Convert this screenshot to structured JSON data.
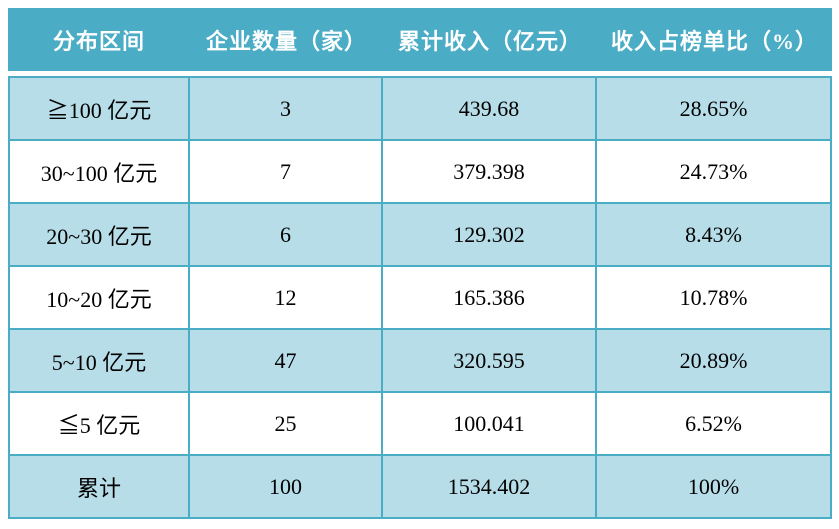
{
  "header": {
    "columns": [
      "分布区间",
      "企业数量（家）",
      "累计收入（亿元）",
      "收入占榜单比（%）"
    ]
  },
  "rows": [
    {
      "cells": [
        "≧100 亿元",
        "3",
        "439.68",
        "28.65%"
      ]
    },
    {
      "cells": [
        "30~100 亿元",
        "7",
        "379.398",
        "24.73%"
      ]
    },
    {
      "cells": [
        "20~30 亿元",
        "6",
        "129.302",
        "8.43%"
      ]
    },
    {
      "cells": [
        "10~20 亿元",
        "12",
        "165.386",
        "10.78%"
      ]
    },
    {
      "cells": [
        "5~10 亿元",
        "47",
        "320.595",
        "20.89%"
      ]
    },
    {
      "cells": [
        "≦5 亿元",
        "25",
        "100.041",
        "6.52%"
      ]
    },
    {
      "cells": [
        "累计",
        "100",
        "1534.402",
        "100%"
      ]
    }
  ],
  "colors": {
    "header_bg": "#4bacc6",
    "header_text": "#ffffff",
    "alt_row_bg": "#b7dde8",
    "row_bg": "#ffffff",
    "border": "#4bacc6",
    "body_text": "#000000"
  },
  "chart_data": {
    "type": "table",
    "title": "",
    "columns": [
      "分布区间",
      "企业数量（家）",
      "累计收入（亿元）",
      "收入占榜单比（%）"
    ],
    "categories": [
      "≧100 亿元",
      "30~100 亿元",
      "20~30 亿元",
      "10~20 亿元",
      "5~10 亿元",
      "≦5 亿元",
      "累计"
    ],
    "series": [
      {
        "name": "企业数量（家）",
        "values": [
          3,
          7,
          6,
          12,
          47,
          25,
          100
        ]
      },
      {
        "name": "累计收入（亿元）",
        "values": [
          439.68,
          379.398,
          129.302,
          165.386,
          320.595,
          100.041,
          1534.402
        ]
      },
      {
        "name": "收入占榜单比（%）",
        "values": [
          28.65,
          24.73,
          8.43,
          10.78,
          20.89,
          6.52,
          100
        ]
      }
    ]
  }
}
